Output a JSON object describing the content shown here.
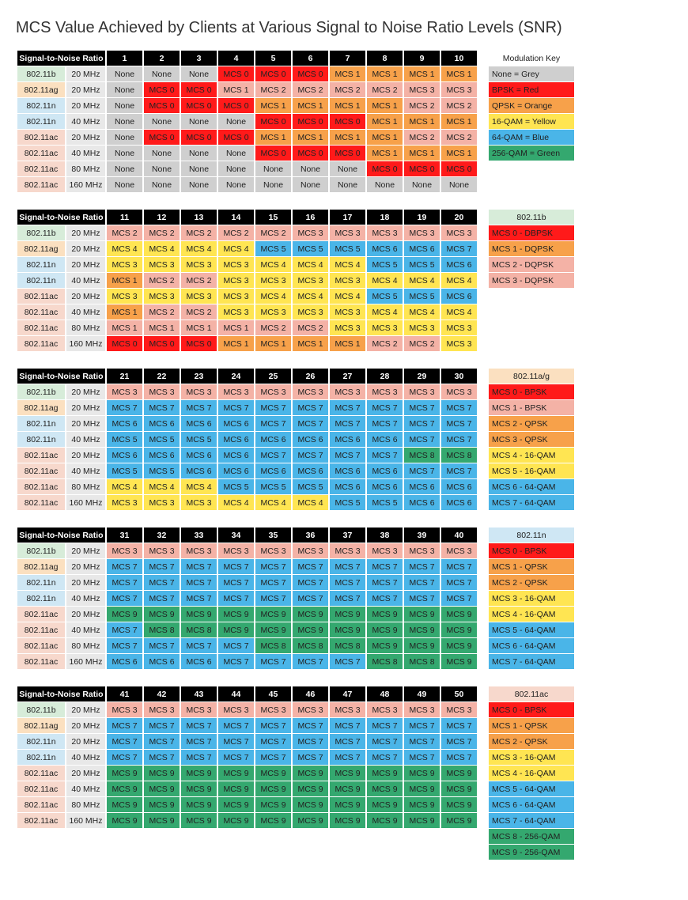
{
  "title": "MCS Value Achieved by Clients at Various Signal to Noise Ratio Levels (SNR)",
  "snr_header_label": "Signal-to-Noise Ratio",
  "rowlabel_colors": {
    "802.11b": "#d7ecd9",
    "802.11ag": "#fbe0c0",
    "802.11n": "#cfe7f4",
    "802.11ac": "#f7d8cc"
  },
  "bw_bg": "#e8e8e8",
  "colors": {
    "grey": "#cfcfcf",
    "red": "#ff1a1a",
    "orange": "#f7a14a",
    "yellow": "#ffe552",
    "blue": "#4ab5e8",
    "green": "#34a86f",
    "pink": "#f4b2a6"
  },
  "cells": {
    "N": {
      "t": "None",
      "c": "grey"
    },
    "M0": {
      "t": "MCS 0",
      "c": "red"
    },
    "M1": {
      "t": "MCS 1",
      "c": "orange"
    },
    "M2": {
      "t": "MCS 2",
      "c": "orange"
    },
    "M3": {
      "t": "MCS 3",
      "c": "yellow"
    },
    "M4": {
      "t": "MCS 4",
      "c": "yellow"
    },
    "M5": {
      "t": "MCS 5",
      "c": "blue"
    },
    "M6": {
      "t": "MCS 6",
      "c": "blue"
    },
    "M7": {
      "t": "MCS 7",
      "c": "blue"
    },
    "M8": {
      "t": "MCS 8",
      "c": "green"
    },
    "M9": {
      "t": "MCS 9",
      "c": "green"
    },
    "M1p": {
      "t": "MCS 1",
      "c": "pink"
    },
    "M2p": {
      "t": "MCS 2",
      "c": "pink"
    },
    "M3p": {
      "t": "MCS 3",
      "c": "pink"
    }
  },
  "rows": [
    {
      "std": "802.11b",
      "bw": "20 MHz"
    },
    {
      "std": "802.11ag",
      "bw": "20 MHz"
    },
    {
      "std": "802.11n",
      "bw": "20 MHz"
    },
    {
      "std": "802.11n",
      "bw": "40 MHz"
    },
    {
      "std": "802.11ac",
      "bw": "20 MHz"
    },
    {
      "std": "802.11ac",
      "bw": "40 MHz"
    },
    {
      "std": "802.11ac",
      "bw": "80 MHz"
    },
    {
      "std": "802.11ac",
      "bw": "160 MHz"
    }
  ],
  "blocks": [
    {
      "snr": [
        1,
        2,
        3,
        4,
        5,
        6,
        7,
        8,
        9,
        10
      ],
      "data": [
        [
          "N",
          "N",
          "N",
          "M0",
          "M0",
          "M0",
          "M1",
          "M1",
          "M1",
          "M1"
        ],
        [
          "N",
          "M0",
          "M0",
          "M1p",
          "M2p",
          "M2p",
          "M2p",
          "M2p",
          "M3p",
          "M3p"
        ],
        [
          "N",
          "M0",
          "M0",
          "M0",
          "M1",
          "M1",
          "M1",
          "M1",
          "M2p",
          "M2p"
        ],
        [
          "N",
          "N",
          "N",
          "N",
          "M0",
          "M0",
          "M0",
          "M1",
          "M1",
          "M1"
        ],
        [
          "N",
          "M0",
          "M0",
          "M0",
          "M1",
          "M1",
          "M1",
          "M1",
          "M2p",
          "M2p"
        ],
        [
          "N",
          "N",
          "N",
          "N",
          "M0",
          "M0",
          "M0",
          "M1",
          "M1",
          "M1"
        ],
        [
          "N",
          "N",
          "N",
          "N",
          "N",
          "N",
          "N",
          "M0",
          "M0",
          "M0"
        ],
        [
          "N",
          "N",
          "N",
          "N",
          "N",
          "N",
          "N",
          "N",
          "N",
          "N"
        ]
      ],
      "legend": {
        "header": {
          "t": "Modulation Key",
          "bg": "#ffffff"
        },
        "items": [
          {
            "t": "None = Grey",
            "c": "grey"
          },
          {
            "t": "BPSK = Red",
            "c": "red"
          },
          {
            "t": "QPSK = Orange",
            "c": "orange"
          },
          {
            "t": "16-QAM = Yellow",
            "c": "yellow"
          },
          {
            "t": "64-QAM = Blue",
            "c": "blue"
          },
          {
            "t": "256-QAM = Green",
            "c": "green"
          }
        ]
      }
    },
    {
      "snr": [
        11,
        12,
        13,
        14,
        15,
        16,
        17,
        18,
        19,
        20
      ],
      "data": [
        [
          "M2p",
          "M2p",
          "M2p",
          "M2p",
          "M2p",
          "M3p",
          "M3p",
          "M3p",
          "M3p",
          "M3p"
        ],
        [
          "M4",
          "M4",
          "M4",
          "M4",
          "M5",
          "M5",
          "M5",
          "M6",
          "M6",
          "M7"
        ],
        [
          "M3",
          "M3",
          "M3",
          "M3",
          "M4",
          "M4",
          "M4",
          "M5",
          "M5",
          "M6"
        ],
        [
          "M1",
          "M2p",
          "M2p",
          "M3",
          "M3",
          "M3",
          "M3",
          "M4",
          "M4",
          "M4"
        ],
        [
          "M3",
          "M3",
          "M3",
          "M3",
          "M4",
          "M4",
          "M4",
          "M5",
          "M5",
          "M6"
        ],
        [
          "M1",
          "M2p",
          "M2p",
          "M3",
          "M3",
          "M3",
          "M3",
          "M4",
          "M4",
          "M4"
        ],
        [
          "M1p",
          "M1p",
          "M1p",
          "M1p",
          "M2p",
          "M2p",
          "M3",
          "M3",
          "M3",
          "M3"
        ],
        [
          "M0",
          "M0",
          "M0",
          "M1",
          "M1",
          "M1",
          "M1",
          "M2p",
          "M2p",
          "M3"
        ]
      ],
      "legend": {
        "header": {
          "t": "802.11b",
          "bg": "#d7ecd9"
        },
        "items": [
          {
            "t": "MCS 0 - DBPSK",
            "c": "red"
          },
          {
            "t": "MCS 1 - DQPSK",
            "c": "orange"
          },
          {
            "t": "MCS 2 - DQPSK",
            "c": "pink"
          },
          {
            "t": "MCS 3 - DQPSK",
            "c": "pink"
          }
        ]
      }
    },
    {
      "snr": [
        21,
        22,
        23,
        24,
        25,
        26,
        27,
        28,
        29,
        30
      ],
      "data": [
        [
          "M3p",
          "M3p",
          "M3p",
          "M3p",
          "M3p",
          "M3p",
          "M3p",
          "M3p",
          "M3p",
          "M3p"
        ],
        [
          "M7",
          "M7",
          "M7",
          "M7",
          "M7",
          "M7",
          "M7",
          "M7",
          "M7",
          "M7"
        ],
        [
          "M6",
          "M6",
          "M6",
          "M6",
          "M7",
          "M7",
          "M7",
          "M7",
          "M7",
          "M7"
        ],
        [
          "M5",
          "M5",
          "M5",
          "M6",
          "M6",
          "M6",
          "M6",
          "M6",
          "M7",
          "M7"
        ],
        [
          "M6",
          "M6",
          "M6",
          "M6",
          "M7",
          "M7",
          "M7",
          "M7",
          "M8",
          "M8"
        ],
        [
          "M5",
          "M5",
          "M6",
          "M6",
          "M6",
          "M6",
          "M6",
          "M6",
          "M7",
          "M7"
        ],
        [
          "M4",
          "M4",
          "M4",
          "M5",
          "M5",
          "M5",
          "M6",
          "M6",
          "M6",
          "M6"
        ],
        [
          "M3",
          "M3",
          "M3",
          "M4",
          "M4",
          "M4",
          "M5",
          "M5",
          "M6",
          "M6"
        ]
      ],
      "legend": {
        "header": {
          "t": "802.11a/g",
          "bg": "#fbe0c0"
        },
        "items": [
          {
            "t": "MCS 0 - BPSK",
            "c": "red"
          },
          {
            "t": "MCS 1 - BPSK",
            "c": "pink"
          },
          {
            "t": "MCS 2 - QPSK",
            "c": "orange"
          },
          {
            "t": "MCS 3 - QPSK",
            "c": "orange"
          },
          {
            "t": "MCS 4 - 16-QAM",
            "c": "yellow"
          },
          {
            "t": "MCS 5 - 16-QAM",
            "c": "yellow"
          },
          {
            "t": "MCS 6 - 64-QAM",
            "c": "blue"
          },
          {
            "t": "MCS 7 - 64-QAM",
            "c": "blue"
          }
        ]
      }
    },
    {
      "snr": [
        31,
        32,
        33,
        34,
        35,
        36,
        37,
        38,
        39,
        40
      ],
      "data": [
        [
          "M3p",
          "M3p",
          "M3p",
          "M3p",
          "M3p",
          "M3p",
          "M3p",
          "M3p",
          "M3p",
          "M3p"
        ],
        [
          "M7",
          "M7",
          "M7",
          "M7",
          "M7",
          "M7",
          "M7",
          "M7",
          "M7",
          "M7"
        ],
        [
          "M7",
          "M7",
          "M7",
          "M7",
          "M7",
          "M7",
          "M7",
          "M7",
          "M7",
          "M7"
        ],
        [
          "M7",
          "M7",
          "M7",
          "M7",
          "M7",
          "M7",
          "M7",
          "M7",
          "M7",
          "M7"
        ],
        [
          "M9",
          "M9",
          "M9",
          "M9",
          "M9",
          "M9",
          "M9",
          "M9",
          "M9",
          "M9"
        ],
        [
          "M7",
          "M8",
          "M8",
          "M9",
          "M9",
          "M9",
          "M9",
          "M9",
          "M9",
          "M9"
        ],
        [
          "M7",
          "M7",
          "M7",
          "M7",
          "M8",
          "M8",
          "M8",
          "M9",
          "M9",
          "M9"
        ],
        [
          "M6",
          "M6",
          "M6",
          "M7",
          "M7",
          "M7",
          "M7",
          "M8",
          "M8",
          "M9"
        ]
      ],
      "legend": {
        "header": {
          "t": "802.11n",
          "bg": "#cfe7f4"
        },
        "items": [
          {
            "t": "MCS 0 - BPSK",
            "c": "red"
          },
          {
            "t": "MCS 1 - QPSK",
            "c": "orange"
          },
          {
            "t": "MCS 2 - QPSK",
            "c": "orange"
          },
          {
            "t": "MCS 3 - 16-QAM",
            "c": "yellow"
          },
          {
            "t": "MCS 4 - 16-QAM",
            "c": "yellow"
          },
          {
            "t": "MCS 5 - 64-QAM",
            "c": "blue"
          },
          {
            "t": "MCS 6 - 64-QAM",
            "c": "blue"
          },
          {
            "t": "MCS 7 - 64-QAM",
            "c": "blue"
          }
        ]
      }
    },
    {
      "snr": [
        41,
        42,
        43,
        44,
        45,
        46,
        47,
        48,
        49,
        50
      ],
      "data": [
        [
          "M3p",
          "M3p",
          "M3p",
          "M3p",
          "M3p",
          "M3p",
          "M3p",
          "M3p",
          "M3p",
          "M3p"
        ],
        [
          "M7",
          "M7",
          "M7",
          "M7",
          "M7",
          "M7",
          "M7",
          "M7",
          "M7",
          "M7"
        ],
        [
          "M7",
          "M7",
          "M7",
          "M7",
          "M7",
          "M7",
          "M7",
          "M7",
          "M7",
          "M7"
        ],
        [
          "M7",
          "M7",
          "M7",
          "M7",
          "M7",
          "M7",
          "M7",
          "M7",
          "M7",
          "M7"
        ],
        [
          "M9",
          "M9",
          "M9",
          "M9",
          "M9",
          "M9",
          "M9",
          "M9",
          "M9",
          "M9"
        ],
        [
          "M9",
          "M9",
          "M9",
          "M9",
          "M9",
          "M9",
          "M9",
          "M9",
          "M9",
          "M9"
        ],
        [
          "M9",
          "M9",
          "M9",
          "M9",
          "M9",
          "M9",
          "M9",
          "M9",
          "M9",
          "M9"
        ],
        [
          "M9",
          "M9",
          "M9",
          "M9",
          "M9",
          "M9",
          "M9",
          "M9",
          "M9",
          "M9"
        ]
      ],
      "legend": {
        "header": {
          "t": "802.11ac",
          "bg": "#f7d8cc"
        },
        "items": [
          {
            "t": "MCS 0 - BPSK",
            "c": "red"
          },
          {
            "t": "MCS 1 - QPSK",
            "c": "orange"
          },
          {
            "t": "MCS 2 - QPSK",
            "c": "orange"
          },
          {
            "t": "MCS 3 - 16-QAM",
            "c": "yellow"
          },
          {
            "t": "MCS 4 - 16-QAM",
            "c": "yellow"
          },
          {
            "t": "MCS 5 - 64-QAM",
            "c": "blue"
          },
          {
            "t": "MCS 6 - 64-QAM",
            "c": "blue"
          },
          {
            "t": "MCS 7 - 64-QAM",
            "c": "blue"
          },
          {
            "t": "MCS 8 - 256-QAM",
            "c": "green"
          },
          {
            "t": "MCS 9 - 256-QAM",
            "c": "green"
          }
        ]
      }
    }
  ]
}
